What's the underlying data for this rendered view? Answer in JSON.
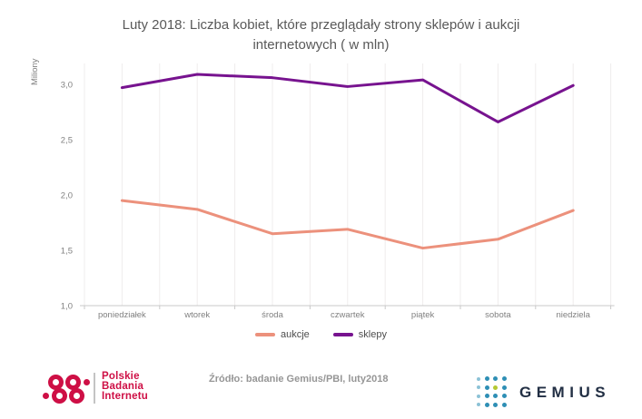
{
  "title": "Luty 2018: Liczba kobiet, które przeglądały strony sklepów i aukcji internetowych ( w mln)",
  "chart_data": {
    "type": "line",
    "title": "Luty 2018: Liczba kobiet, które przeglądały strony sklepów i aukcji internetowych ( w mln)",
    "categories": [
      "poniedziałek",
      "wtorek",
      "środa",
      "czwartek",
      "piątek",
      "sobota",
      "niedziela"
    ],
    "series": [
      {
        "name": "aukcje",
        "color": "#EC917C",
        "values": [
          1.95,
          1.87,
          1.65,
          1.69,
          1.52,
          1.6,
          1.86
        ]
      },
      {
        "name": "sklepy",
        "color": "#77138F",
        "values": [
          2.97,
          3.09,
          3.06,
          2.98,
          3.04,
          2.66,
          2.99
        ]
      }
    ],
    "xlabel": "",
    "ylabel": "Miliony",
    "yticks": [
      1.0,
      1.5,
      2.0,
      2.5,
      3.0
    ],
    "ytick_labels": [
      "1,0",
      "1,5",
      "2,0",
      "2,5",
      "3,0"
    ],
    "ylim": [
      1.0,
      3.2
    ],
    "grid": "vertical-only",
    "legend_position": "bottom"
  },
  "footer": {
    "source": "Źródło: badanie Gemius/PBI, luty2018",
    "pbi_logo_text": "Polskie\nBadania\nInternetu",
    "gemius_logo_text": "GEMIUS"
  },
  "colors": {
    "title_text": "#595959",
    "axis_text": "#808080",
    "gridline": "#efecec",
    "axis_line": "#c9c9c9",
    "pbi_brand": "#CE0F45",
    "gemius_dot": "#2E8FB5",
    "gemius_accent_dot": "#B5C832",
    "gemius_text": "#222F44"
  }
}
